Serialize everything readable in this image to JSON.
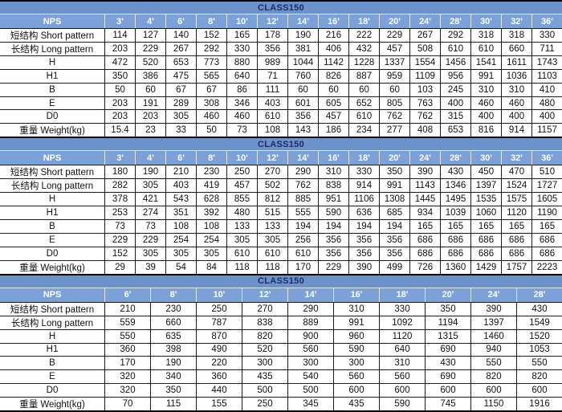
{
  "colors": {
    "title_bar_bg": "#6c92cc",
    "header_row_bg": "#7ba1d8",
    "title_text": "#1d2c5f",
    "header_text": "#ffffff",
    "grid": "#1a1a1a",
    "separator": "#dce6f3",
    "text": "#111111"
  },
  "tables": [
    {
      "title": "CLASS150",
      "nps_label": "NPS",
      "columns": [
        "3'",
        "4'",
        "6'",
        "8'",
        "10'",
        "12'",
        "14'",
        "16'",
        "18'",
        "20'",
        "24'",
        "28'",
        "30'",
        "32'",
        "36'"
      ],
      "rows": [
        {
          "label": "短结构 Short pattern",
          "values": [
            "114",
            "127",
            "140",
            "152",
            "165",
            "178",
            "190",
            "216",
            "222",
            "229",
            "267",
            "292",
            "318",
            "318",
            "330"
          ]
        },
        {
          "label": "长结构 Long pattern",
          "values": [
            "203",
            "229",
            "267",
            "292",
            "330",
            "356",
            "381",
            "406",
            "432",
            "457",
            "508",
            "610",
            "610",
            "660",
            "711"
          ]
        },
        {
          "label": "H",
          "values": [
            "472",
            "520",
            "653",
            "773",
            "880",
            "989",
            "1044",
            "1142",
            "1228",
            "1337",
            "1554",
            "1456",
            "1541",
            "1611",
            "1743"
          ]
        },
        {
          "label": "H1",
          "values": [
            "350",
            "386",
            "475",
            "565",
            "640",
            "71",
            "760",
            "826",
            "887",
            "959",
            "1109",
            "956",
            "991",
            "1036",
            "1103"
          ]
        },
        {
          "label": "B",
          "values": [
            "50",
            "60",
            "67",
            "67",
            "86",
            "111",
            "60",
            "60",
            "60",
            "60",
            "103",
            "245",
            "310",
            "310",
            "410"
          ]
        },
        {
          "label": "E",
          "values": [
            "203",
            "191",
            "289",
            "308",
            "346",
            "403",
            "601",
            "605",
            "652",
            "805",
            "763",
            "400",
            "460",
            "460",
            "480"
          ]
        },
        {
          "label": "D0",
          "values": [
            "203",
            "203",
            "305",
            "460",
            "460",
            "610",
            "356",
            "457",
            "610",
            "762",
            "762",
            "315",
            "400",
            "400",
            "400"
          ]
        },
        {
          "label": "重量 Weight(kg)",
          "values": [
            "15.4",
            "23",
            "33",
            "50",
            "73",
            "108",
            "143",
            "186",
            "234",
            "277",
            "408",
            "653",
            "816",
            "914",
            "1157"
          ]
        }
      ]
    },
    {
      "title": "CLASS150",
      "nps_label": "NPS",
      "columns": [
        "3'",
        "4'",
        "6'",
        "8'",
        "10'",
        "12'",
        "14'",
        "16'",
        "18'",
        "20'",
        "24'",
        "28'",
        "30'",
        "32'",
        "36'"
      ],
      "rows": [
        {
          "label": "短结构 Short pattern",
          "values": [
            "180",
            "190",
            "210",
            "230",
            "250",
            "270",
            "290",
            "310",
            "330",
            "350",
            "390",
            "430",
            "450",
            "470",
            "510"
          ]
        },
        {
          "label": "长结构 Long pattern",
          "values": [
            "282",
            "305",
            "403",
            "419",
            "457",
            "502",
            "762",
            "838",
            "914",
            "991",
            "1143",
            "1346",
            "1397",
            "1524",
            "1727"
          ]
        },
        {
          "label": "H",
          "values": [
            "378",
            "421",
            "543",
            "628",
            "855",
            "812",
            "885",
            "951",
            "1106",
            "1308",
            "1445",
            "1495",
            "1535",
            "1575",
            "1605"
          ]
        },
        {
          "label": "H1",
          "values": [
            "253",
            "274",
            "351",
            "392",
            "480",
            "515",
            "555",
            "590",
            "636",
            "685",
            "934",
            "1039",
            "1060",
            "1120",
            "1190"
          ]
        },
        {
          "label": "B",
          "values": [
            "73",
            "73",
            "108",
            "108",
            "133",
            "133",
            "194",
            "194",
            "194",
            "194",
            "165",
            "165",
            "165",
            "165",
            "165"
          ]
        },
        {
          "label": "E",
          "values": [
            "229",
            "229",
            "254",
            "254",
            "305",
            "305",
            "256",
            "356",
            "356",
            "356",
            "686",
            "686",
            "686",
            "686",
            "686"
          ]
        },
        {
          "label": "D0",
          "values": [
            "152",
            "305",
            "305",
            "305",
            "610",
            "610",
            "610",
            "356",
            "356",
            "356",
            "686",
            "686",
            "686",
            "686",
            "686"
          ]
        },
        {
          "label": "重量 Weight(kg)",
          "values": [
            "29",
            "39",
            "54",
            "84",
            "118",
            "118",
            "170",
            "229",
            "390",
            "499",
            "726",
            "1360",
            "1429",
            "1757",
            "2223"
          ]
        }
      ]
    },
    {
      "title": "CLASS150",
      "nps_label": "NPS",
      "columns": [
        "6'",
        "8'",
        "10'",
        "12'",
        "14'",
        "16'",
        "18'",
        "20'",
        "24'",
        "28'"
      ],
      "rows": [
        {
          "label": "短结构 Short pattern",
          "values": [
            "210",
            "230",
            "250",
            "270",
            "290",
            "310",
            "330",
            "350",
            "390",
            "430"
          ]
        },
        {
          "label": "长结构 Long pattern",
          "values": [
            "559",
            "660",
            "787",
            "838",
            "889",
            "991",
            "1092",
            "1194",
            "1397",
            "1549"
          ]
        },
        {
          "label": "H",
          "values": [
            "550",
            "635",
            "870",
            "820",
            "900",
            "960",
            "1120",
            "1315",
            "1460",
            "1520"
          ]
        },
        {
          "label": "H1",
          "values": [
            "360",
            "398",
            "490",
            "520",
            "560",
            "590",
            "640",
            "690",
            "940",
            "1053"
          ]
        },
        {
          "label": "B",
          "values": [
            "170",
            "190",
            "220",
            "300",
            "300",
            "300",
            "310",
            "430",
            "550",
            "550"
          ]
        },
        {
          "label": "E",
          "values": [
            "320",
            "340",
            "360",
            "435",
            "540",
            "560",
            "560",
            "690",
            "820",
            "820"
          ]
        },
        {
          "label": "D0",
          "values": [
            "320",
            "350",
            "440",
            "500",
            "500",
            "600",
            "600",
            "600",
            "600",
            "600"
          ]
        },
        {
          "label": "重量 Weight(kg)",
          "values": [
            "70",
            "115",
            "155",
            "250",
            "345",
            "435",
            "590",
            "745",
            "1150",
            "1916"
          ]
        }
      ]
    }
  ]
}
